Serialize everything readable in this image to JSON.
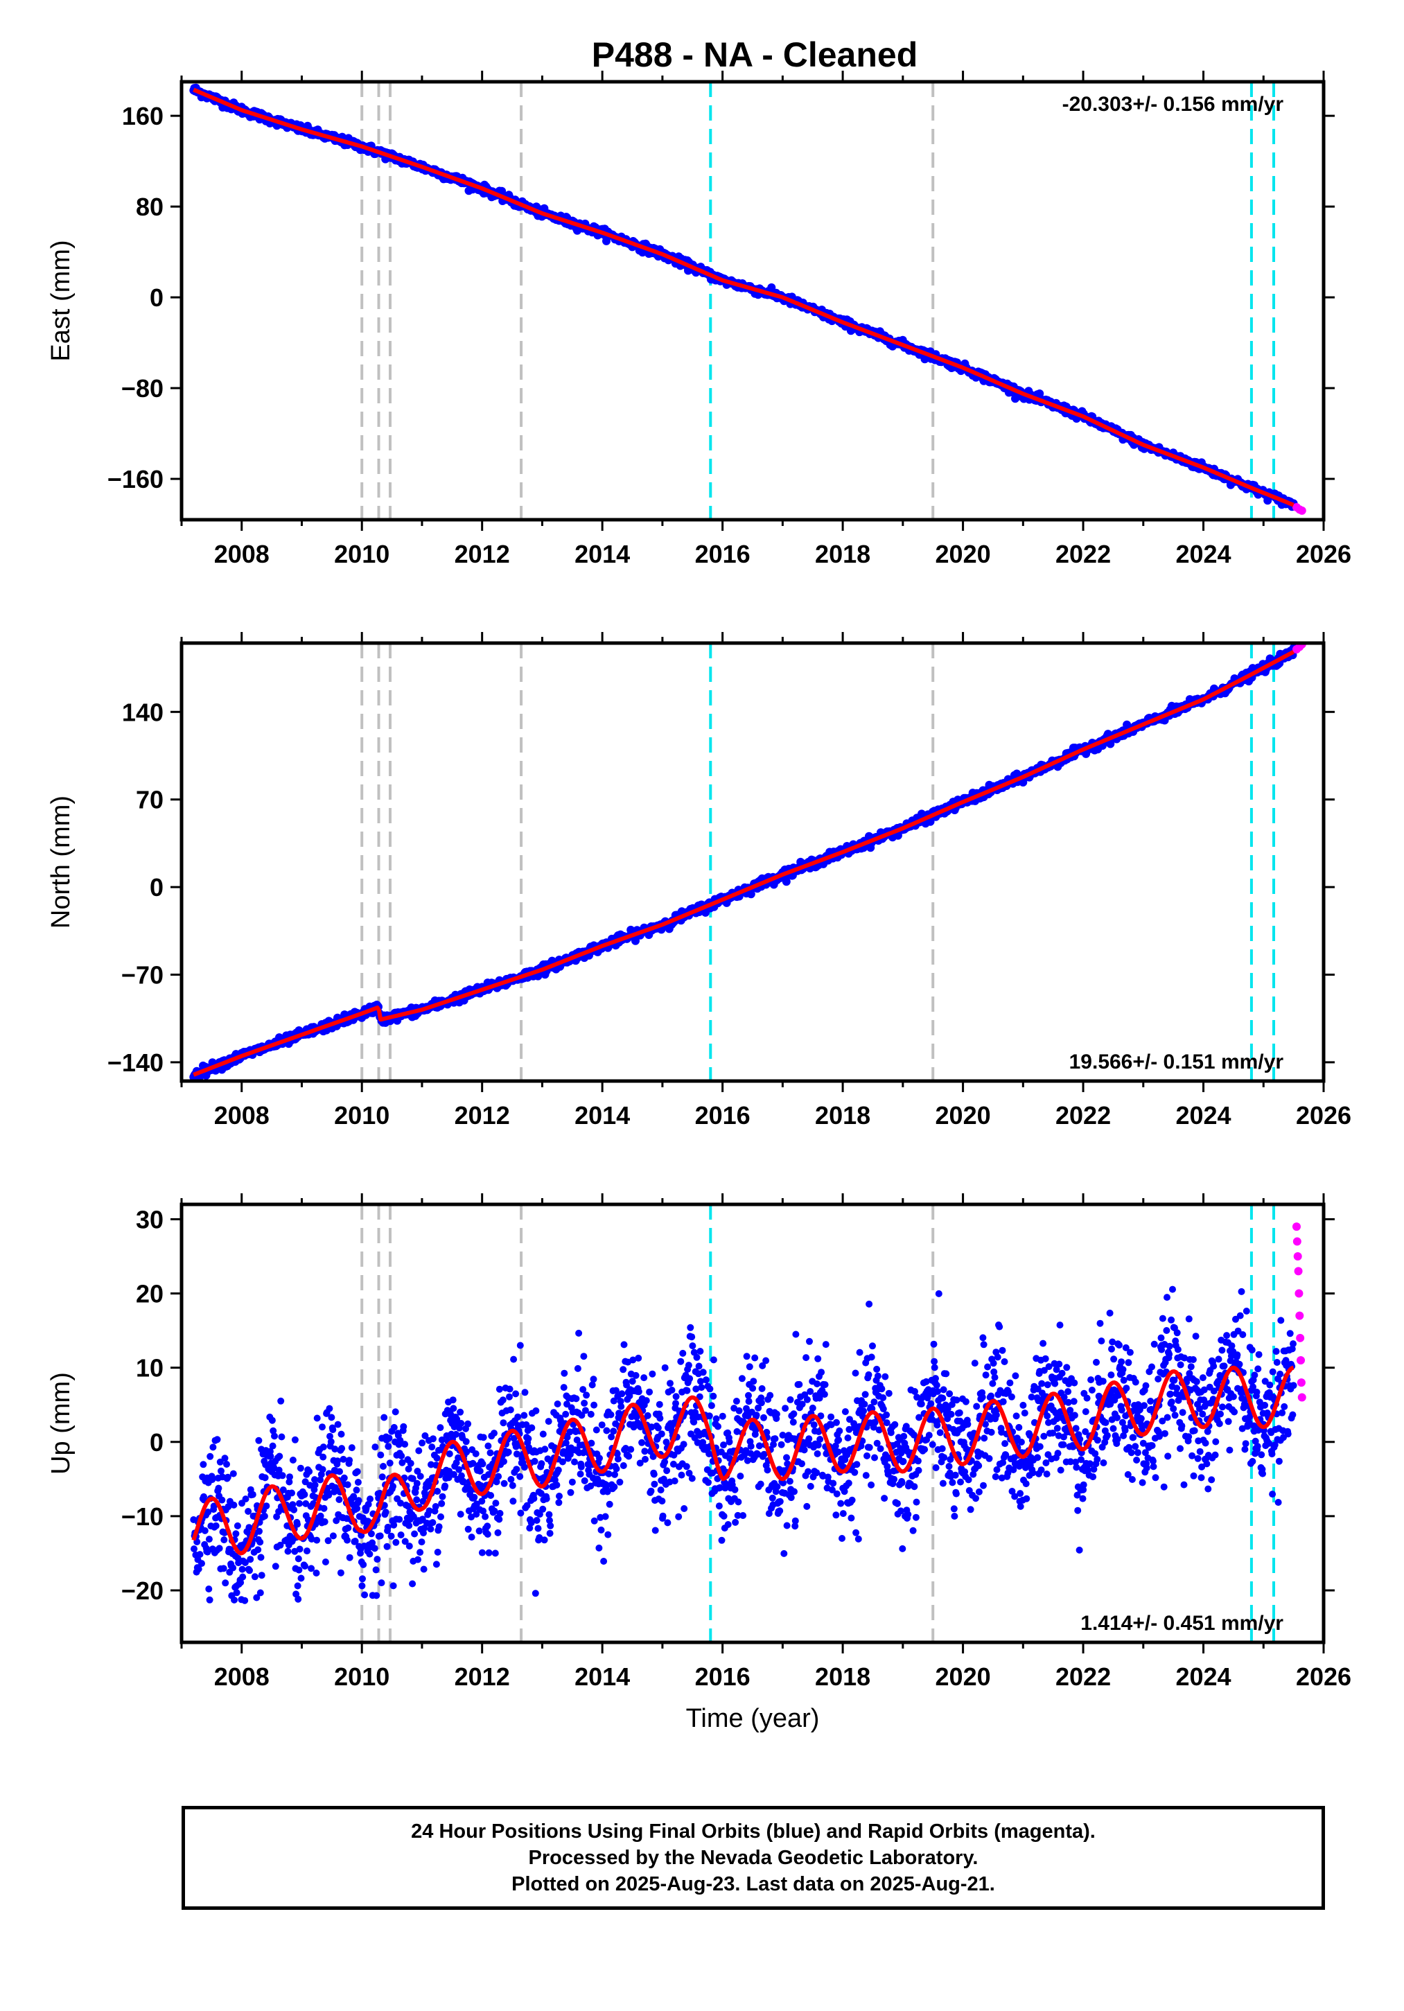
{
  "title": "P488  - NA - Cleaned",
  "colors": {
    "final_orbits": "#0000ff",
    "rapid_orbits": "#ff00ff",
    "model": "#ff0000",
    "gray_marker": "#c0c0c0",
    "cyan_marker": "#00e5ee"
  },
  "chart_data": [
    {
      "type": "scatter",
      "name": "east",
      "ylabel": "East (mm)",
      "xlabel": "",
      "xlim": [
        2007.0,
        2026.0
      ],
      "ylim": [
        -196,
        190
      ],
      "x_ticks": [
        2008,
        2010,
        2012,
        2014,
        2016,
        2018,
        2020,
        2022,
        2024,
        2026
      ],
      "y_ticks": [
        160,
        80,
        0,
        -80,
        -160
      ],
      "y_tick_labels": [
        "160",
        "80",
        "0",
        "−80",
        "−160"
      ],
      "rate_text": "-20.303+/- 0.156 mm/yr",
      "rate_position": "top-right",
      "gray_lines": [
        2010.0,
        2010.28,
        2010.47,
        2012.65,
        2019.5
      ],
      "cyan_lines": [
        2015.8,
        2024.8,
        2025.17
      ],
      "final_series": {
        "x": [
          2007.2,
          2008,
          2009,
          2010,
          2011,
          2012,
          2013,
          2014,
          2015,
          2016,
          2017,
          2018,
          2019,
          2020,
          2021,
          2022,
          2023,
          2024,
          2024.8,
          2025.5
        ],
        "y": [
          183,
          165,
          148,
          133,
          115,
          96,
          74,
          57,
          38,
          15,
          0,
          -22,
          -42,
          -62,
          -85,
          -105,
          -130,
          -150,
          -168,
          -183
        ]
      },
      "rapid_series": {
        "x": [
          2025.55,
          2025.6,
          2025.64
        ],
        "y": [
          -185,
          -187,
          -188
        ]
      }
    },
    {
      "type": "scatter",
      "name": "north",
      "ylabel": "North (mm)",
      "xlabel": "",
      "xlim": [
        2007.0,
        2026.0
      ],
      "ylim": [
        -155,
        195
      ],
      "x_ticks": [
        2008,
        2010,
        2012,
        2014,
        2016,
        2018,
        2020,
        2022,
        2024,
        2026
      ],
      "y_ticks": [
        140,
        70,
        0,
        -70,
        -140
      ],
      "y_tick_labels": [
        "140",
        "70",
        "0",
        "−70",
        "−140"
      ],
      "rate_text": "19.566+/- 0.151 mm/yr",
      "rate_position": "bottom-right",
      "gray_lines": [
        2010.0,
        2010.28,
        2010.47,
        2012.65,
        2019.5
      ],
      "cyan_lines": [
        2015.8,
        2024.8,
        2025.17
      ],
      "final_series": {
        "x": [
          2007.2,
          2008,
          2009,
          2010,
          2010.28,
          2010.3,
          2011,
          2012,
          2013,
          2014,
          2015,
          2016,
          2017,
          2018,
          2019,
          2020,
          2021,
          2022,
          2023,
          2024,
          2024.8,
          2025.5
        ],
        "y": [
          -150,
          -135,
          -118,
          -101,
          -96,
          -106,
          -98,
          -82,
          -66,
          -47,
          -30,
          -10,
          10,
          28,
          47,
          68,
          88,
          110,
          130,
          150,
          170,
          188
        ]
      },
      "rapid_series": {
        "x": [
          2025.55,
          2025.6,
          2025.64
        ],
        "y": [
          190,
          192,
          194
        ]
      }
    },
    {
      "type": "scatter",
      "name": "up",
      "ylabel": "Up (mm)",
      "xlabel": "Time (year)",
      "xlim": [
        2007.0,
        2026.0
      ],
      "ylim": [
        -27,
        32
      ],
      "x_ticks": [
        2008,
        2010,
        2012,
        2014,
        2016,
        2018,
        2020,
        2022,
        2024,
        2026
      ],
      "y_ticks": [
        30,
        20,
        10,
        0,
        -10,
        -20
      ],
      "y_tick_labels": [
        "30",
        "20",
        "10",
        "0",
        "−10",
        "−20"
      ],
      "rate_text": "1.414+/- 0.451 mm/yr",
      "rate_position": "bottom-right",
      "gray_lines": [
        2010.0,
        2010.28,
        2010.47,
        2012.65,
        2019.5
      ],
      "cyan_lines": [
        2015.8,
        2024.8,
        2025.17
      ],
      "model_amplitude": 4,
      "final_series": {
        "x": [
          2007.2,
          2008,
          2009,
          2010,
          2010.3,
          2011,
          2012,
          2013,
          2014,
          2015,
          2015.8,
          2016,
          2017,
          2018,
          2019,
          2020,
          2021,
          2022,
          2023,
          2024,
          2025,
          2025.5
        ],
        "y": [
          -12,
          -11,
          -9,
          -8,
          -10,
          -5,
          -3,
          -2,
          0,
          2,
          2,
          -1,
          -1,
          0,
          0,
          1,
          2,
          3,
          5,
          6,
          6,
          6
        ]
      },
      "rapid_series": {
        "x": [
          2025.55,
          2025.56,
          2025.57,
          2025.58,
          2025.59,
          2025.6,
          2025.61,
          2025.62,
          2025.63,
          2025.64
        ],
        "y": [
          29,
          27,
          25,
          23,
          20,
          17,
          14,
          11,
          8,
          6
        ]
      }
    }
  ],
  "footer": {
    "line1": "24 Hour Positions Using Final Orbits (blue) and Rapid Orbits (magenta).",
    "line2": "Processed by the Nevada Geodetic Laboratory.",
    "line3": "Plotted on 2025-Aug-23. Last data on 2025-Aug-21."
  }
}
